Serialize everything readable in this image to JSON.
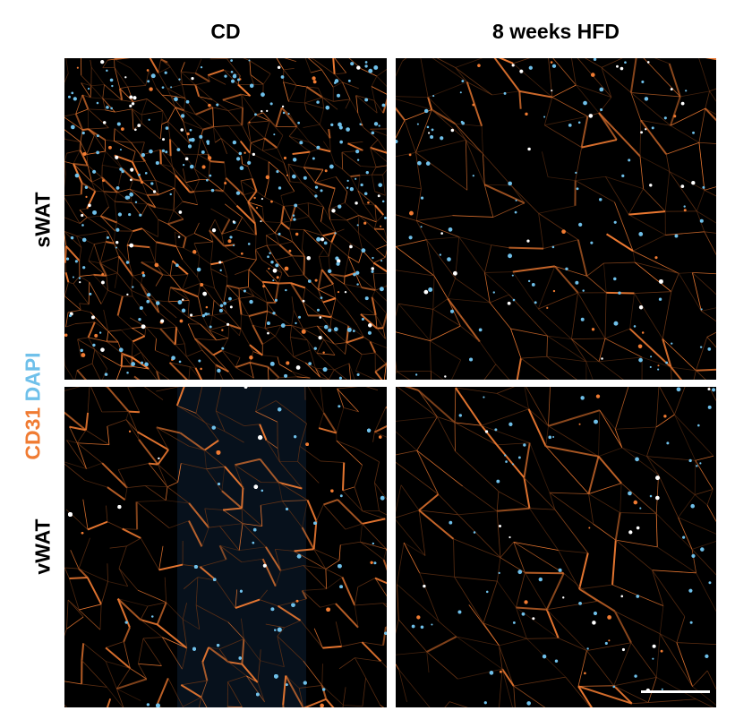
{
  "columns": {
    "cd": "CD",
    "hfd": "8 weeks HFD"
  },
  "rows": {
    "swat": "sWAT",
    "vwat": "vWAT"
  },
  "stain": {
    "cd31": "CD31",
    "dapi": "DAPI"
  },
  "colors": {
    "cd31": "#f07b32",
    "dapi": "#6fc0ea",
    "background": "#000000",
    "scale_bar": "#ffffff"
  }
}
